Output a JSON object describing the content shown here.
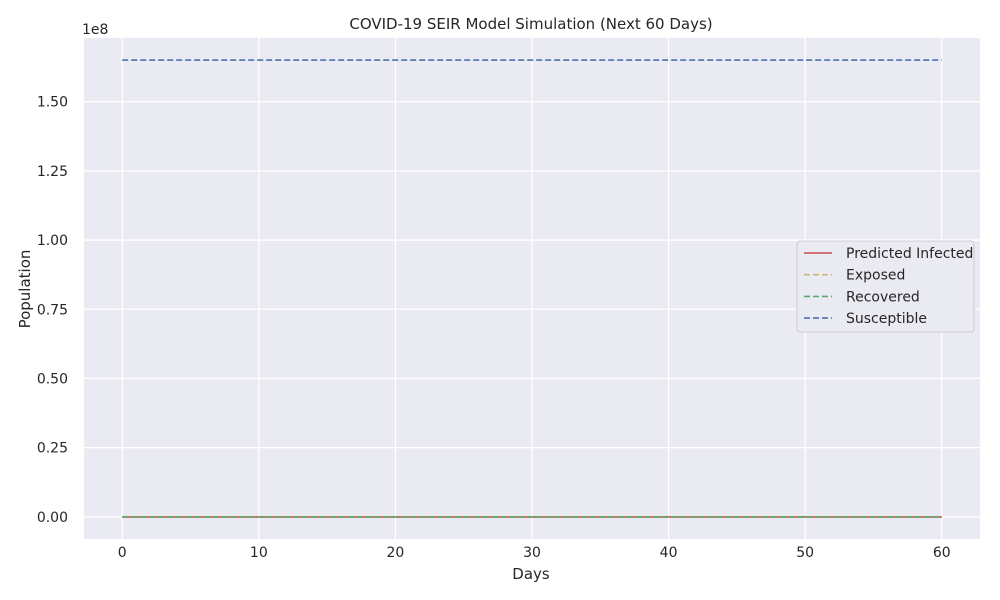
{
  "chart_data": {
    "type": "line",
    "title": "COVID-19 SEIR Model Simulation (Next 60 Days)",
    "xlabel": "Days",
    "ylabel": "Population",
    "y_offset_label": "1e8",
    "xlim": [
      -2.8,
      62.8
    ],
    "ylim": [
      -8000000.0,
      173000000.0
    ],
    "x_ticks": [
      0,
      10,
      20,
      30,
      40,
      50,
      60
    ],
    "x_tick_labels": [
      "0",
      "10",
      "20",
      "30",
      "40",
      "50",
      "60"
    ],
    "y_ticks": [
      0,
      25000000,
      50000000,
      75000000,
      100000000,
      125000000,
      150000000
    ],
    "y_tick_labels": [
      "0.00",
      "0.25",
      "0.50",
      "0.75",
      "1.00",
      "1.25",
      "1.50"
    ],
    "grid": true,
    "legend_position": "center-right",
    "x": [
      0,
      60
    ],
    "series": [
      {
        "name": "Predicted Infected",
        "color": "#c44e52",
        "style": "solid",
        "values": [
          0,
          0
        ]
      },
      {
        "name": "Exposed",
        "color": "#ccb974",
        "style": "dashed",
        "values": [
          0,
          0
        ]
      },
      {
        "name": "Recovered",
        "color": "#55a868",
        "style": "dashed",
        "values": [
          0,
          0
        ]
      },
      {
        "name": "Susceptible",
        "color": "#4c72b0",
        "style": "dashed",
        "values": [
          165000000,
          165000000
        ]
      }
    ],
    "colors": {
      "plot_bg": "#eaeaf2",
      "grid": "#ffffff",
      "text": "#262626"
    }
  }
}
